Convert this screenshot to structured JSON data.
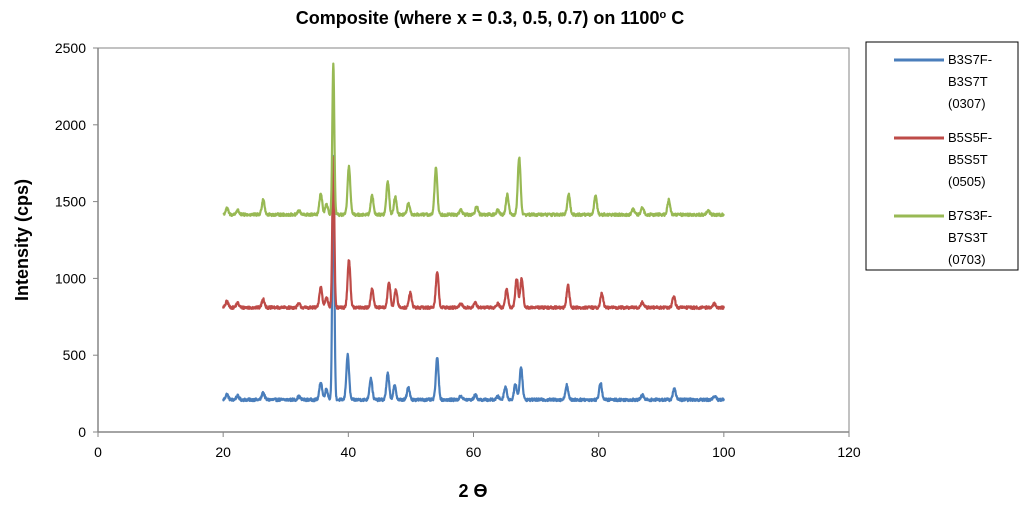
{
  "chart_data": {
    "type": "line",
    "title": "Composite (where x = 0.3, 0.5, 0.7) on 1100",
    "title_superscript": "o",
    "title_suffix": " C",
    "xlabel": "2 ϴ",
    "ylabel": "Intensity (cps)",
    "xlim": [
      0,
      120
    ],
    "ylim": [
      0,
      2500
    ],
    "xticks": [
      0,
      20,
      40,
      60,
      80,
      100,
      120
    ],
    "yticks": [
      0,
      500,
      1000,
      1500,
      2000,
      2500
    ],
    "x_tick_labels": [
      "0",
      "20",
      "40",
      "60",
      "80",
      "100",
      "120"
    ],
    "y_tick_labels": [
      "0",
      "500",
      "1000",
      "1500",
      "2000",
      "2500"
    ],
    "grid": false,
    "legend_position": "right",
    "series": [
      {
        "name": "B3S7F-B3S7T (0307)",
        "legend_lines": [
          "B3S7F-",
          "B3S7T",
          "(0307)"
        ],
        "color": "#4a7ebb",
        "baseline": 210,
        "x_range": [
          20,
          100
        ],
        "peaks": [
          {
            "x": 20.6,
            "y": 245
          },
          {
            "x": 22.3,
            "y": 235
          },
          {
            "x": 26.4,
            "y": 255
          },
          {
            "x": 32.1,
            "y": 230
          },
          {
            "x": 35.6,
            "y": 325
          },
          {
            "x": 36.5,
            "y": 280
          },
          {
            "x": 37.6,
            "y": 1790
          },
          {
            "x": 39.9,
            "y": 500
          },
          {
            "x": 43.6,
            "y": 350
          },
          {
            "x": 46.3,
            "y": 380
          },
          {
            "x": 47.4,
            "y": 300
          },
          {
            "x": 49.6,
            "y": 290
          },
          {
            "x": 54.2,
            "y": 480
          },
          {
            "x": 58.0,
            "y": 235
          },
          {
            "x": 60.3,
            "y": 240
          },
          {
            "x": 63.9,
            "y": 230
          },
          {
            "x": 65.1,
            "y": 295
          },
          {
            "x": 66.7,
            "y": 310
          },
          {
            "x": 67.6,
            "y": 425
          },
          {
            "x": 74.9,
            "y": 305
          },
          {
            "x": 80.3,
            "y": 320
          },
          {
            "x": 87.0,
            "y": 240
          },
          {
            "x": 92.1,
            "y": 285
          },
          {
            "x": 98.5,
            "y": 235
          }
        ]
      },
      {
        "name": "B5S5F-B5S5T (0505)",
        "legend_lines": [
          "B5S5F-",
          "B5S5T",
          "(0505)"
        ],
        "color": "#be4b48",
        "baseline": 810,
        "x_range": [
          20,
          100
        ],
        "peaks": [
          {
            "x": 20.6,
            "y": 850
          },
          {
            "x": 22.3,
            "y": 840
          },
          {
            "x": 26.4,
            "y": 865
          },
          {
            "x": 32.1,
            "y": 835
          },
          {
            "x": 35.6,
            "y": 945
          },
          {
            "x": 36.5,
            "y": 880
          },
          {
            "x": 37.6,
            "y": 1790
          },
          {
            "x": 40.1,
            "y": 1120
          },
          {
            "x": 43.8,
            "y": 935
          },
          {
            "x": 46.5,
            "y": 975
          },
          {
            "x": 47.6,
            "y": 925
          },
          {
            "x": 49.9,
            "y": 905
          },
          {
            "x": 54.2,
            "y": 1045
          },
          {
            "x": 58.0,
            "y": 835
          },
          {
            "x": 60.3,
            "y": 840
          },
          {
            "x": 63.9,
            "y": 835
          },
          {
            "x": 65.3,
            "y": 930
          },
          {
            "x": 66.9,
            "y": 1000
          },
          {
            "x": 67.7,
            "y": 1000
          },
          {
            "x": 75.1,
            "y": 955
          },
          {
            "x": 80.5,
            "y": 900
          },
          {
            "x": 87.0,
            "y": 845
          },
          {
            "x": 92.0,
            "y": 880
          },
          {
            "x": 98.5,
            "y": 835
          }
        ]
      },
      {
        "name": "B7S3F-B7S3T (0703)",
        "legend_lines": [
          "B7S3F-",
          "B7S3T",
          "(0703)"
        ],
        "color": "#98b954",
        "baseline": 1415,
        "x_range": [
          20,
          100
        ],
        "peaks": [
          {
            "x": 20.6,
            "y": 1455
          },
          {
            "x": 22.3,
            "y": 1445
          },
          {
            "x": 26.4,
            "y": 1515
          },
          {
            "x": 32.1,
            "y": 1440
          },
          {
            "x": 35.6,
            "y": 1550
          },
          {
            "x": 36.5,
            "y": 1480
          },
          {
            "x": 37.6,
            "y": 2390
          },
          {
            "x": 40.1,
            "y": 1725
          },
          {
            "x": 43.8,
            "y": 1540
          },
          {
            "x": 46.3,
            "y": 1630
          },
          {
            "x": 47.5,
            "y": 1530
          },
          {
            "x": 49.6,
            "y": 1485
          },
          {
            "x": 54.0,
            "y": 1720
          },
          {
            "x": 58.0,
            "y": 1445
          },
          {
            "x": 60.5,
            "y": 1470
          },
          {
            "x": 63.9,
            "y": 1445
          },
          {
            "x": 65.4,
            "y": 1545
          },
          {
            "x": 67.3,
            "y": 1790
          },
          {
            "x": 75.2,
            "y": 1550
          },
          {
            "x": 79.5,
            "y": 1540
          },
          {
            "x": 85.5,
            "y": 1450
          },
          {
            "x": 87.0,
            "y": 1460
          },
          {
            "x": 91.2,
            "y": 1510
          },
          {
            "x": 97.5,
            "y": 1440
          }
        ]
      }
    ]
  }
}
